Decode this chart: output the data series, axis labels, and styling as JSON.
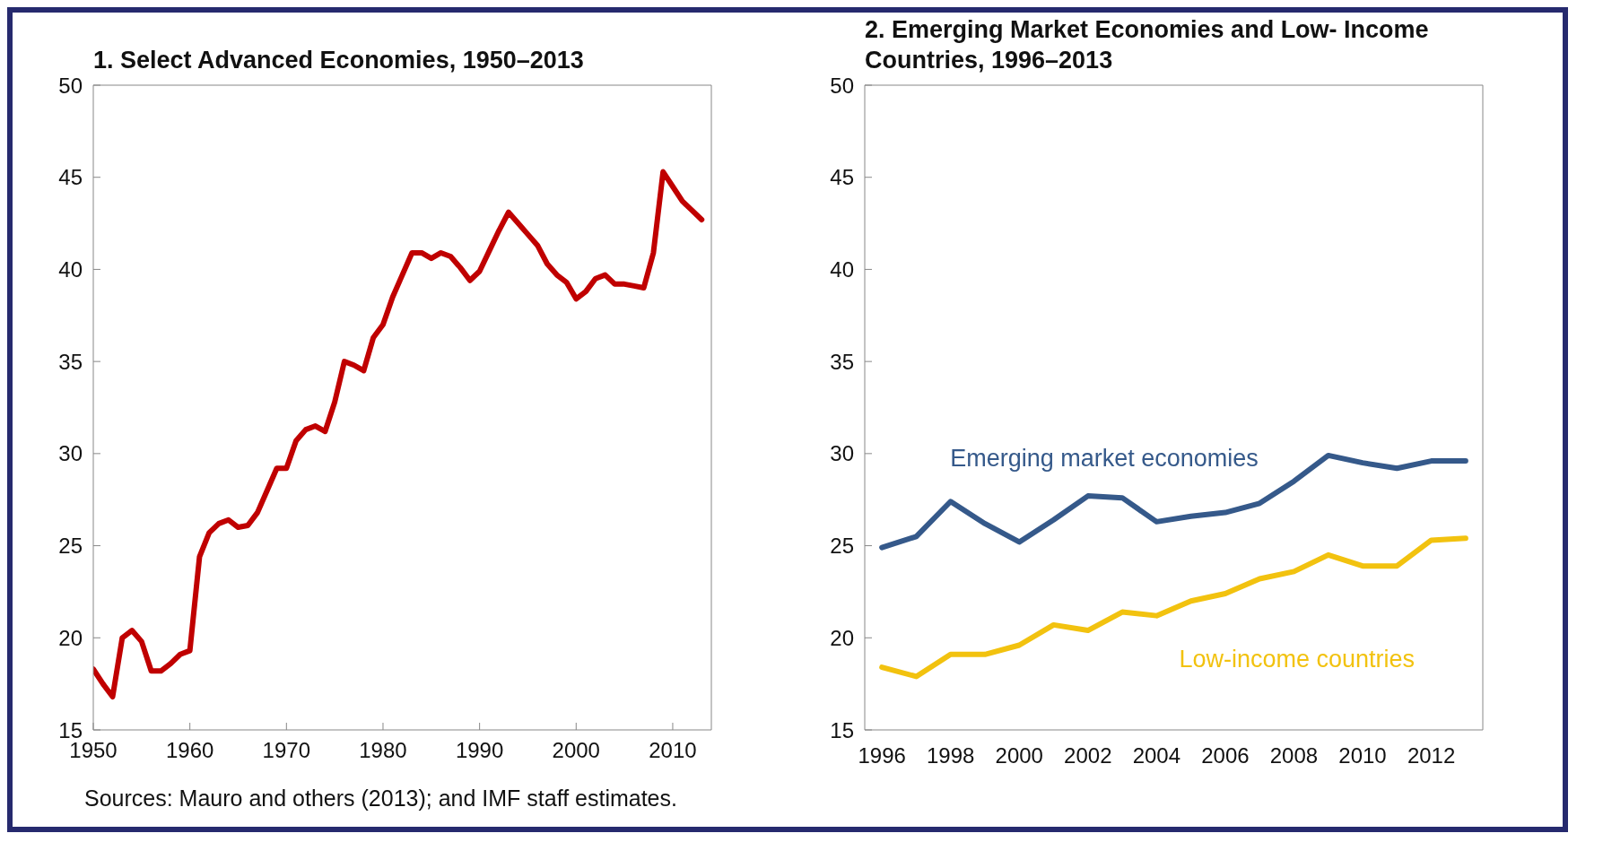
{
  "chart_data": [
    {
      "type": "line",
      "title": "1. Select Advanced Economies, 1950–2013",
      "x": [
        1950,
        1951,
        1952,
        1953,
        1954,
        1955,
        1956,
        1957,
        1958,
        1959,
        1960,
        1961,
        1962,
        1963,
        1964,
        1965,
        1966,
        1967,
        1968,
        1969,
        1970,
        1971,
        1972,
        1973,
        1974,
        1975,
        1976,
        1977,
        1978,
        1979,
        1980,
        1981,
        1982,
        1983,
        1984,
        1985,
        1986,
        1987,
        1988,
        1989,
        1990,
        1991,
        1992,
        1993,
        1994,
        1995,
        1996,
        1997,
        1998,
        1999,
        2000,
        2001,
        2002,
        2003,
        2004,
        2005,
        2006,
        2007,
        2008,
        2009,
        2010,
        2011,
        2012,
        2013
      ],
      "series": [
        {
          "color": "#c00000",
          "values": [
            18.3,
            17.5,
            16.8,
            20.0,
            20.4,
            19.8,
            18.2,
            18.2,
            18.6,
            19.1,
            19.3,
            24.4,
            25.7,
            26.2,
            26.4,
            26.0,
            26.1,
            26.8,
            28.0,
            29.2,
            29.2,
            30.7,
            31.3,
            31.5,
            31.2,
            32.8,
            35.0,
            34.8,
            34.5,
            36.3,
            37.0,
            38.5,
            39.7,
            40.9,
            40.9,
            40.6,
            40.9,
            40.7,
            40.1,
            39.4,
            39.9,
            41.0,
            42.1,
            43.1,
            42.5,
            41.9,
            41.3,
            40.3,
            39.7,
            39.3,
            38.4,
            38.8,
            39.5,
            39.7,
            39.2,
            39.2,
            39.1,
            39.0,
            40.9,
            45.3,
            44.5,
            43.7,
            43.2,
            42.7
          ]
        }
      ],
      "xlim": [
        1950,
        2014
      ],
      "xticks": [
        1950,
        1960,
        1970,
        1980,
        1990,
        2000,
        2010
      ],
      "ylim": [
        15,
        50
      ],
      "yticks": [
        15,
        20,
        25,
        30,
        35,
        40,
        45,
        50
      ],
      "annotations": [
        "Sources: Mauro and others (2013); and IMF staff estimates."
      ]
    },
    {
      "type": "line",
      "title": "2. Emerging Market Economies and Low- Income Countries, 1996–2013",
      "categories": [
        "1996",
        null,
        "1998",
        null,
        "2000",
        null,
        "2002",
        null,
        "2004",
        null,
        "2006",
        null,
        "2008",
        null,
        "2010",
        null,
        "2012",
        null
      ],
      "series": [
        {
          "name": "Emerging market economies",
          "color": "#35598a",
          "values": [
            24.9,
            25.5,
            27.4,
            26.2,
            25.2,
            26.4,
            27.7,
            27.6,
            26.3,
            26.6,
            26.8,
            27.3,
            28.5,
            29.9,
            29.5,
            29.2,
            29.6,
            29.6
          ]
        },
        {
          "name": "Low-income countries",
          "color": "#f2c20f",
          "values": [
            18.4,
            17.9,
            19.1,
            19.1,
            19.6,
            20.7,
            20.4,
            21.4,
            21.2,
            22.0,
            22.4,
            23.2,
            23.6,
            24.5,
            23.9,
            23.9,
            25.3,
            25.4
          ]
        }
      ],
      "ylim": [
        15,
        50
      ],
      "yticks": [
        15,
        20,
        25,
        30,
        35,
        40,
        45,
        50
      ]
    }
  ]
}
